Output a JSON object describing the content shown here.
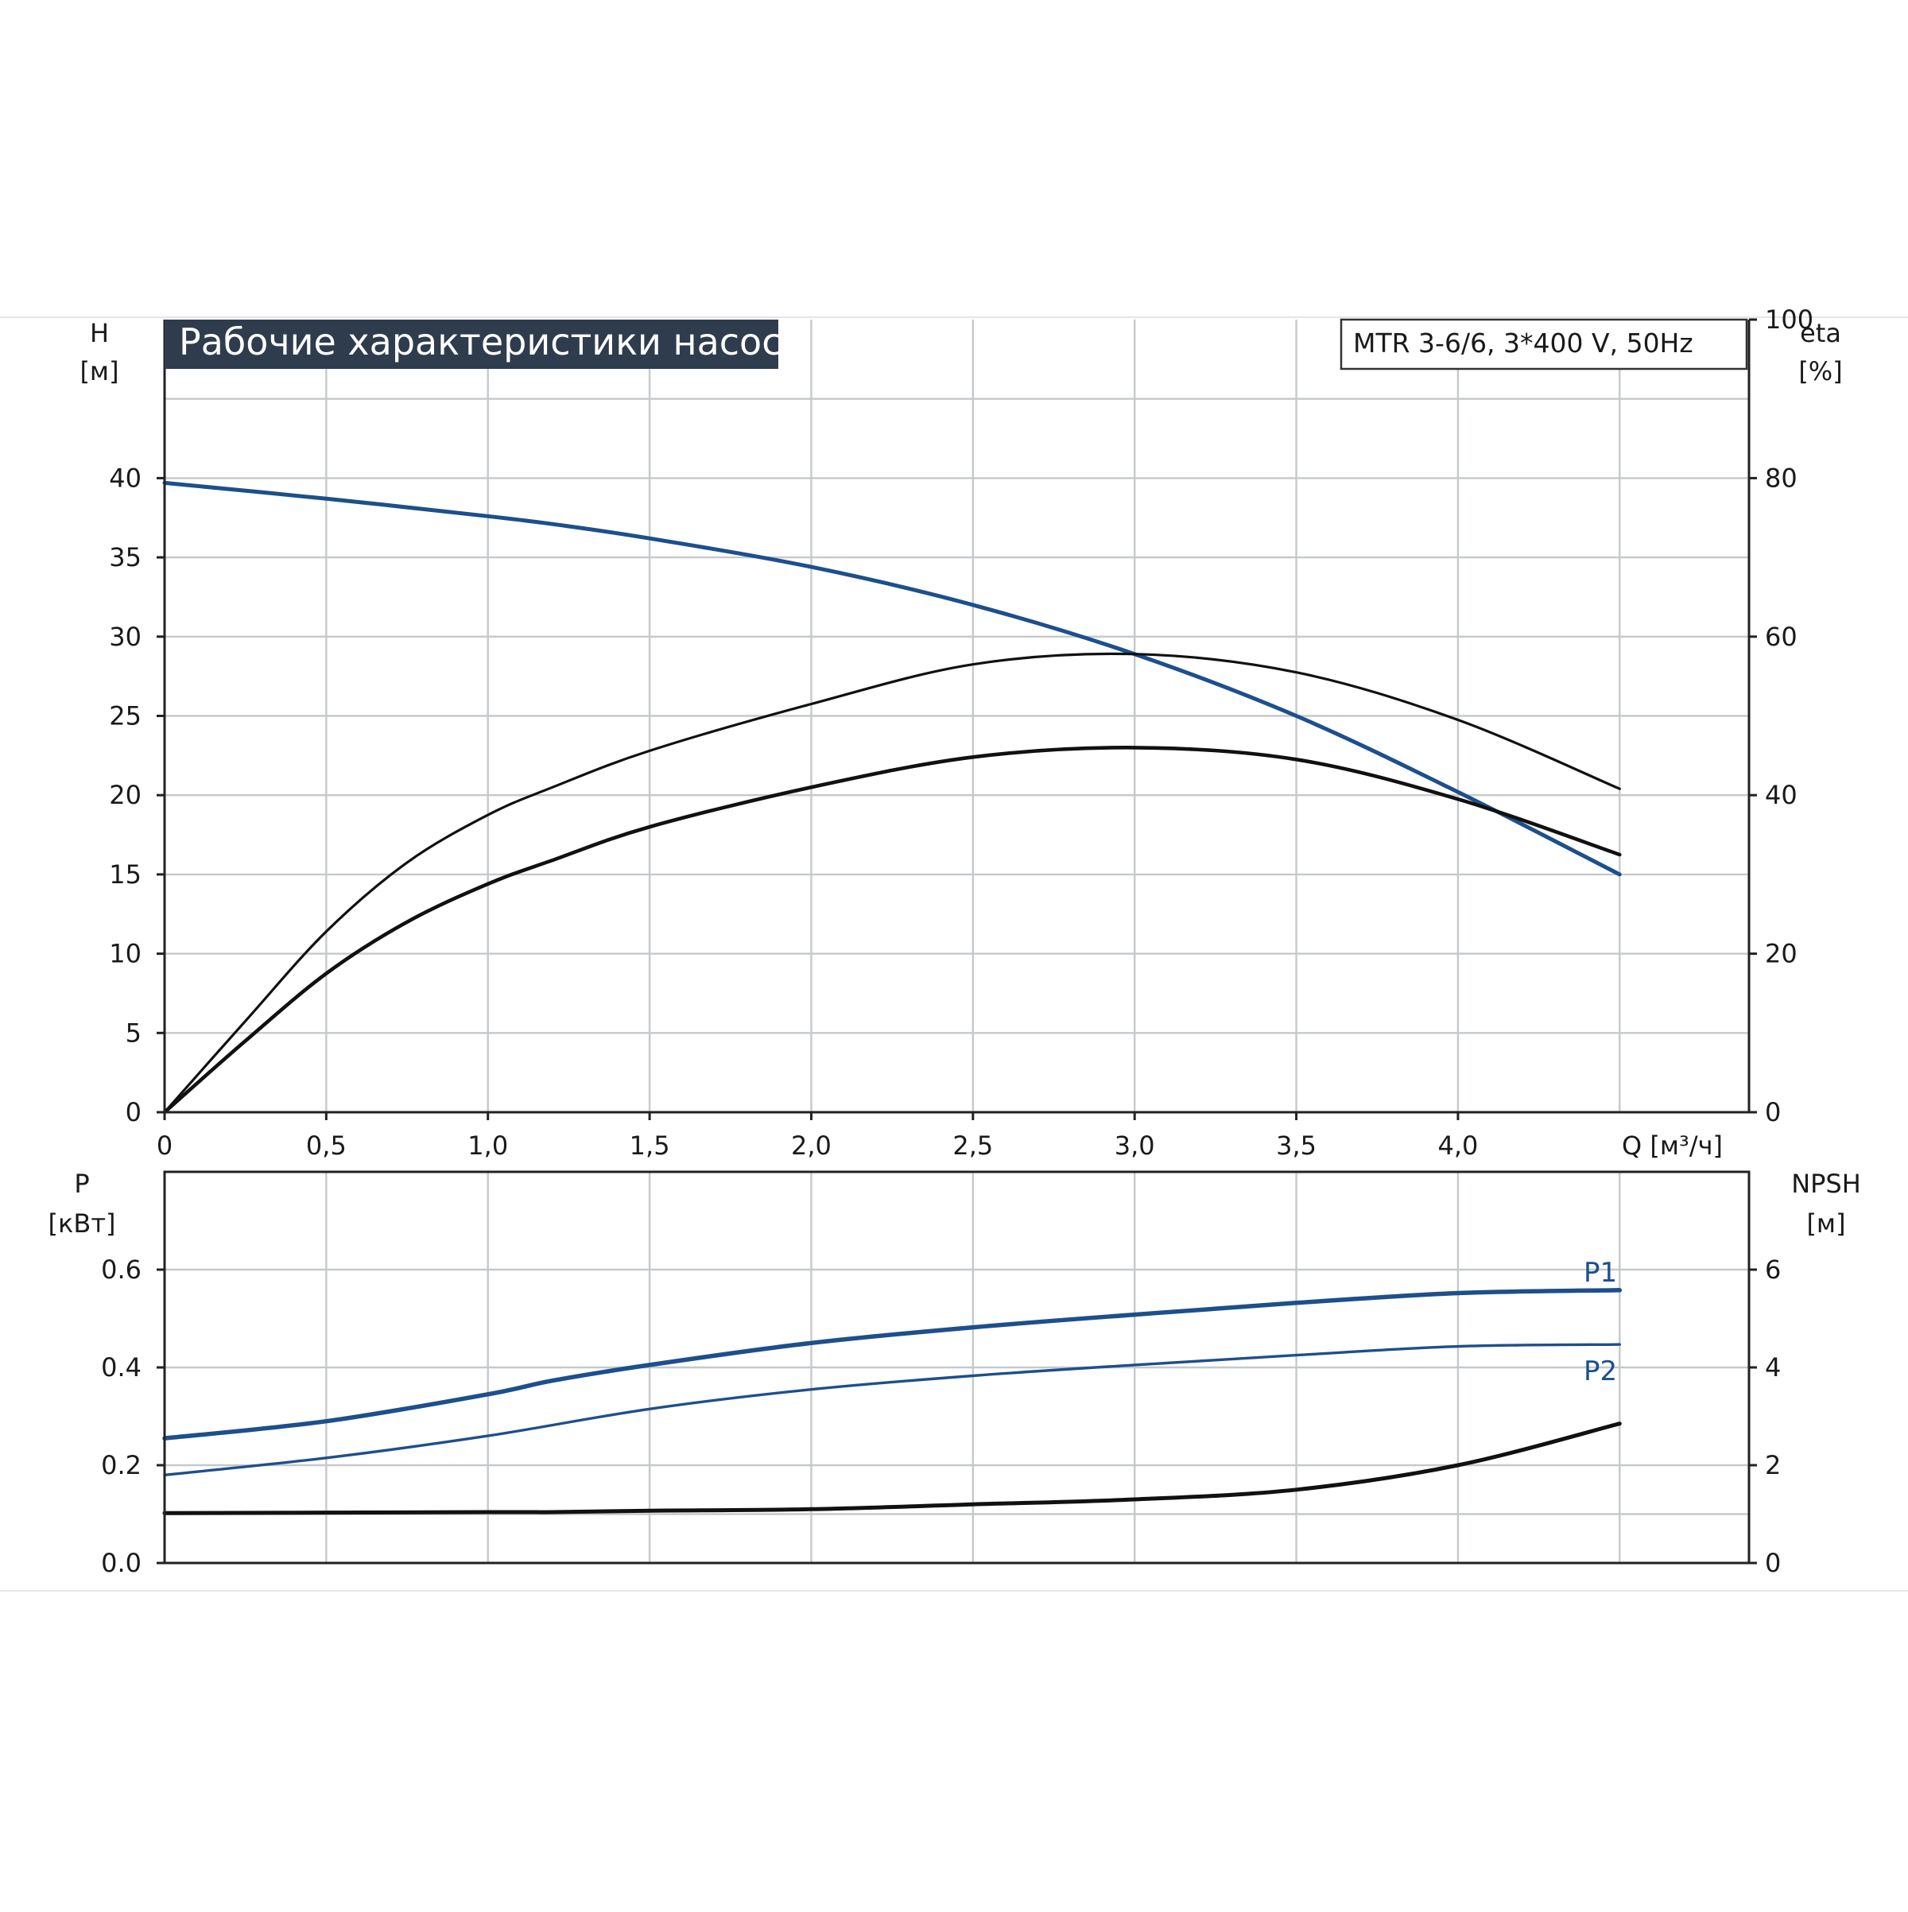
{
  "chart_data": [
    {
      "type": "line",
      "title": "Рабочие характеристики насоса",
      "model_label": "MTR 3-6/6, 3*400 V, 50Hz",
      "xlabel": "Q [м³/ч]",
      "x_ticks": [
        "0",
        "0,5",
        "1,0",
        "1,5",
        "2,0",
        "2,5",
        "3,0",
        "3,5",
        "4,0"
      ],
      "xlim": [
        0,
        4.9
      ],
      "y_left": {
        "label_line1": "H",
        "label_line2": "[м]",
        "ticks": [
          "0",
          "5",
          "10",
          "15",
          "20",
          "25",
          "30",
          "35",
          "40"
        ],
        "ylim": [
          0,
          50
        ]
      },
      "y_right": {
        "label_line1": "eta",
        "label_line2": "[%]",
        "ticks": [
          "0",
          "20",
          "40",
          "60",
          "80",
          "100"
        ],
        "ylim": [
          0,
          100
        ]
      },
      "grid": true,
      "colors": {
        "head": "#1d4f8c",
        "efficiency": "#111111",
        "grid": "#c6c9cc",
        "title_bg": "#2f3c4e"
      },
      "series": [
        {
          "axis": "left",
          "color": "#1d4f8c",
          "x": [
            0,
            0.5,
            1.0,
            1.2,
            1.5,
            2.0,
            2.5,
            3.0,
            3.5,
            4.0,
            4.5
          ],
          "y": [
            39.7,
            38.7,
            37.6,
            37.1,
            36.2,
            34.4,
            32.0,
            28.9,
            25.0,
            20.2,
            15.0
          ]
        },
        {
          "axis": "right",
          "color": "#111111",
          "x": [
            0,
            0.25,
            0.5,
            0.75,
            1.0,
            1.2,
            1.5,
            2.0,
            2.5,
            3.0,
            3.5,
            4.0,
            4.5
          ],
          "y": [
            0,
            11.5,
            22.8,
            31.5,
            37.5,
            41.0,
            45.6,
            51.5,
            56.5,
            57.8,
            55.5,
            49.5,
            40.8
          ]
        },
        {
          "axis": "right",
          "color": "#111111",
          "x": [
            0,
            0.25,
            0.5,
            0.75,
            1.0,
            1.2,
            1.5,
            2.0,
            2.5,
            3.0,
            3.5,
            4.0,
            4.5
          ],
          "y": [
            0,
            9.0,
            17.5,
            24.0,
            28.8,
            31.8,
            36.0,
            41.0,
            44.8,
            46.0,
            44.5,
            39.5,
            32.5
          ]
        }
      ]
    },
    {
      "type": "line",
      "xlim": [
        0,
        4.9
      ],
      "x_ticks": [],
      "y_left": {
        "label_line1": "P",
        "label_line2": "[кВт]",
        "ticks": [
          "0.0",
          "0.2",
          "0.4",
          "0.6"
        ],
        "ylim": [
          0,
          0.8
        ]
      },
      "y_right": {
        "label_line1": "NPSH",
        "label_line2": "[м]",
        "ticks": [
          "0",
          "2",
          "4",
          "6"
        ],
        "ylim": [
          0,
          8
        ]
      },
      "grid": true,
      "series": [
        {
          "name": "P1",
          "axis": "left",
          "color": "#1d4f8c",
          "x": [
            0,
            0.5,
            1.0,
            1.2,
            1.5,
            2.0,
            2.5,
            3.0,
            3.5,
            4.0,
            4.5
          ],
          "y": [
            0.255,
            0.29,
            0.345,
            0.373,
            0.405,
            0.45,
            0.482,
            0.508,
            0.532,
            0.552,
            0.558
          ]
        },
        {
          "name": "P2",
          "axis": "left",
          "color": "#1d4f8c",
          "x": [
            0,
            0.5,
            1.0,
            1.5,
            2.0,
            2.5,
            3.0,
            3.5,
            4.0,
            4.5
          ],
          "y": [
            0.18,
            0.215,
            0.26,
            0.315,
            0.355,
            0.383,
            0.405,
            0.425,
            0.443,
            0.447
          ]
        },
        {
          "axis": "right",
          "color": "#111111",
          "x": [
            0,
            1.0,
            1.2,
            1.5,
            2.0,
            2.5,
            3.0,
            3.5,
            4.0,
            4.5
          ],
          "y": [
            1.02,
            1.04,
            1.04,
            1.07,
            1.1,
            1.2,
            1.3,
            1.5,
            2.0,
            2.85
          ]
        }
      ]
    }
  ]
}
